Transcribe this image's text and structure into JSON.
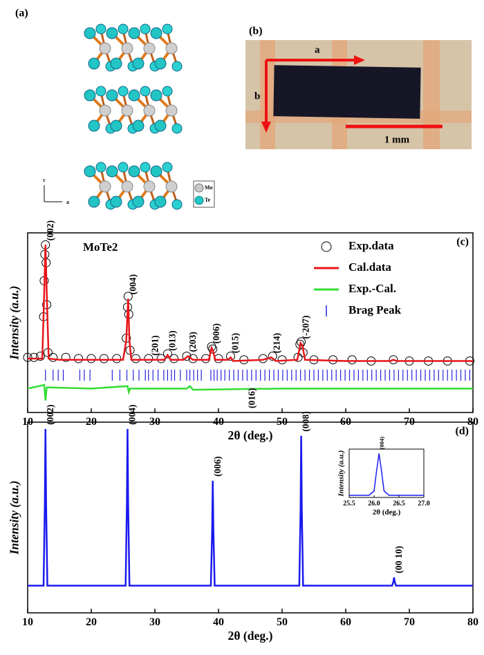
{
  "figure_a": {
    "panel_label": "(a)",
    "legend": [
      "Mo",
      "Te"
    ],
    "axes": [
      "c",
      "a"
    ]
  },
  "figure_b": {
    "panel_label": "(b)",
    "arrow_labels": [
      "a",
      "b"
    ],
    "scale_bar": "1 mm"
  },
  "chart_data": [
    {
      "type": "line",
      "panel_label": "(c)",
      "title": "MoTe2",
      "xlabel": "2θ (deg.)",
      "ylabel": "Intensity (a.u.)",
      "xlim": [
        10,
        80
      ],
      "xticks": [
        10,
        20,
        30,
        40,
        50,
        60,
        70,
        80
      ],
      "ylim": [
        -40,
        110
      ],
      "legend": "upper right",
      "series": [
        {
          "name": "Exp.data",
          "type": "scatter",
          "color": "#000000",
          "x": [
            10,
            11,
            12,
            12.5,
            12.6,
            12.7,
            12.8,
            12.9,
            13.0,
            13.2,
            14,
            16,
            18,
            20,
            22,
            24,
            25.5,
            25.7,
            25.8,
            25.9,
            26.1,
            27,
            29,
            31,
            32,
            33,
            35,
            36,
            38,
            38.9,
            39.1,
            40,
            41.9,
            44,
            47,
            48.5,
            50,
            52.5,
            52.8,
            53.0,
            53.3,
            55,
            58,
            61,
            64,
            67.5,
            70,
            73,
            76,
            79.5
          ],
          "values": [
            6,
            6,
            7,
            40,
            70,
            92,
            100,
            85,
            50,
            10,
            6,
            6,
            5,
            5,
            5,
            5,
            22,
            48,
            57,
            42,
            12,
            5,
            5,
            5,
            9,
            5,
            7,
            5,
            5,
            15,
            13,
            5,
            7,
            4,
            5,
            7,
            4,
            6,
            17,
            19,
            10,
            4,
            4,
            4,
            3,
            4,
            3,
            3,
            3,
            3
          ]
        },
        {
          "name": "Cal.data",
          "type": "line",
          "color": "#e8141a",
          "x": [
            10,
            12.3,
            12.6,
            12.8,
            13.0,
            13.3,
            15,
            20,
            25,
            25.5,
            25.8,
            26.0,
            26.3,
            28,
            29,
            31.5,
            32.0,
            32.5,
            34.5,
            35.2,
            36,
            38.5,
            38.9,
            39.1,
            39.5,
            41.5,
            41.9,
            42.3,
            47,
            48.3,
            49,
            52.4,
            52.9,
            53.2,
            53.6,
            60,
            67,
            67.5,
            68,
            80
          ],
          "values": [
            5,
            5,
            60,
            100,
            60,
            5,
            4,
            4,
            4,
            20,
            55,
            20,
            4,
            4,
            4,
            4,
            8,
            4,
            4,
            7,
            4,
            4,
            14,
            12,
            4,
            4,
            6,
            3,
            4,
            6,
            3,
            4,
            18,
            16,
            4,
            3,
            3,
            4,
            3,
            3
          ]
        },
        {
          "name": "Exp.-Cal.",
          "type": "line",
          "color": "#33dd33",
          "x": [
            10,
            12.6,
            12.8,
            13.0,
            20,
            25.7,
            25.9,
            26.1,
            35,
            35.5,
            36,
            50,
            80
          ],
          "values": [
            -20,
            -17,
            -30,
            -19,
            -20,
            -18,
            -23,
            -20,
            -20,
            -18,
            -21,
            -20,
            -20
          ]
        },
        {
          "name": "Brag Peak",
          "type": "vlines",
          "color": "#2222dd",
          "x": [
            12.8,
            14.0,
            14.8,
            15.6,
            18.2,
            18.9,
            19.8,
            23.3,
            24.5,
            25.6,
            26.6,
            27.5,
            28.5,
            29.0,
            29.7,
            30.5,
            31.4,
            32.0,
            32.6,
            33.1,
            34.0,
            35.0,
            35.5,
            36.1,
            36.7,
            37.3,
            38.8,
            39.3,
            39.8,
            40.4,
            41.0,
            41.7,
            42.4,
            43.1,
            43.8,
            44.5,
            45.2,
            45.9,
            46.6,
            47.3,
            48.0,
            48.7,
            49.4,
            50.1,
            50.8,
            51.5,
            52.2,
            52.9,
            53.6,
            54.3,
            55.0,
            55.7,
            56.4,
            57.1,
            57.8,
            58.5,
            59.2,
            59.9,
            60.6,
            61.3,
            62.0,
            62.7,
            63.4,
            64.1,
            64.8,
            65.5,
            66.2,
            66.9,
            67.6,
            68.3,
            69.0,
            69.7,
            70.4,
            71.1,
            71.8,
            72.5,
            73.2,
            73.9,
            74.6,
            75.3,
            76.0,
            76.7,
            77.4,
            78.1,
            78.8,
            79.5
          ]
        }
      ],
      "annotations": [
        {
          "text": "(002)",
          "x": 12.8
        },
        {
          "text": "(004)",
          "x": 25.8
        },
        {
          "text": "(201)",
          "x": 29.3
        },
        {
          "text": "(013)",
          "x": 32.0
        },
        {
          "text": "(203)",
          "x": 35.2
        },
        {
          "text": "(006)",
          "x": 38.9
        },
        {
          "text": "(015)",
          "x": 41.9
        },
        {
          "text": "(016)",
          "x": 44.5
        },
        {
          "text": "(214)",
          "x": 48.4
        },
        {
          "text": "(-207)",
          "x": 53.0
        }
      ]
    },
    {
      "type": "line",
      "panel_label": "(d)",
      "xlabel": "2θ (deg.)",
      "ylabel": "Intensity (a.u.)",
      "xlim": [
        10,
        80
      ],
      "xticks": [
        10,
        20,
        30,
        40,
        50,
        60,
        70,
        80
      ],
      "ylim": [
        -20,
        120
      ],
      "series": [
        {
          "type": "line",
          "color": "#1a1aee",
          "x": [
            10,
            12.5,
            12.7,
            12.8,
            12.9,
            13.1,
            25.4,
            25.6,
            25.7,
            25.8,
            26.0,
            38.8,
            39.0,
            39.1,
            39.2,
            39.4,
            52.7,
            52.9,
            53.0,
            53.1,
            53.3,
            67.3,
            67.5,
            67.6,
            67.7,
            67.9,
            80
          ],
          "values": [
            0,
            0,
            60,
            115,
            60,
            0,
            0,
            60,
            115,
            60,
            0,
            0,
            40,
            77,
            40,
            0,
            0,
            55,
            110,
            55,
            0,
            0,
            3,
            6,
            3,
            0,
            0
          ]
        }
      ],
      "annotations": [
        {
          "text": "(002)",
          "x": 12.8
        },
        {
          "text": "(004)",
          "x": 25.7
        },
        {
          "text": "(006)",
          "x": 39.1
        },
        {
          "text": "(008)",
          "x": 53.0
        },
        {
          "text": "(00 10)",
          "x": 67.6
        }
      ]
    },
    {
      "type": "line",
      "xlabel": "2θ (deg.)",
      "ylabel": "Intensity (a.u.)",
      "xlim": [
        25.5,
        27
      ],
      "xticks": [
        25.5,
        {
          "value": 26,
          "label": "26.0"
        },
        26.5,
        {
          "value": 27,
          "label": "27.0"
        }
      ],
      "ylim": [
        0,
        110
      ],
      "series": [
        {
          "type": "line",
          "color": "#1a1aee",
          "x": [
            25.5,
            25.9,
            26.0,
            26.05,
            26.1,
            26.15,
            26.2,
            26.3,
            27
          ],
          "values": [
            5,
            5,
            15,
            60,
            100,
            60,
            15,
            5,
            5
          ]
        }
      ],
      "annotations": [
        {
          "text": "(004)",
          "x": 26.1
        }
      ]
    }
  ]
}
